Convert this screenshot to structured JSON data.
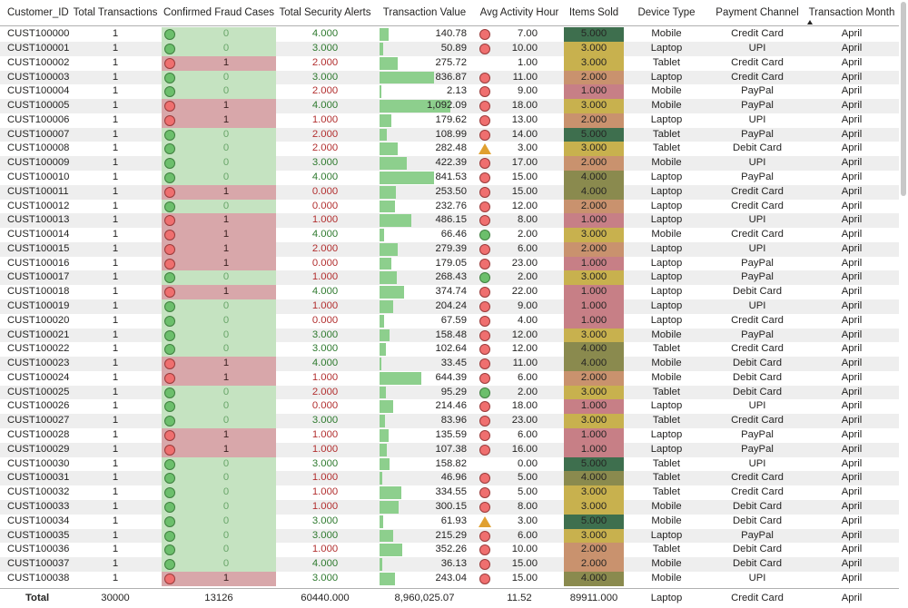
{
  "columns": [
    {
      "key": "customer_id",
      "label": "Customer_ID"
    },
    {
      "key": "total_transactions",
      "label": "Total Transactions"
    },
    {
      "key": "confirmed_fraud_cases",
      "label": "Confirmed Fraud Cases"
    },
    {
      "key": "total_security_alerts",
      "label": "Total Security Alerts"
    },
    {
      "key": "transaction_value",
      "label": "Transaction Value"
    },
    {
      "key": "avg_activity_hour",
      "label": "Avg Activity Hour"
    },
    {
      "key": "items_sold",
      "label": "Items Sold"
    },
    {
      "key": "device_type",
      "label": "Device Type"
    },
    {
      "key": "payment_channel",
      "label": "Payment Channel"
    },
    {
      "key": "transaction_month",
      "label": "Transaction Month"
    }
  ],
  "colors": {
    "fraud_zero_bg": "#c5e3c1",
    "fraud_one_bg": "#d8a7aa",
    "alert_green_text": "#2f7a2f",
    "alert_red_text": "#b22f2f",
    "fraud_zero_text": "#6aa66a",
    "bar_green": "#8dcf8d",
    "items_5": "#3e6f4e",
    "items_4": "#8a8a4e",
    "items_3": "#c8b14e",
    "items_2": "#c9926e",
    "items_1": "#c77f86"
  },
  "rows": [
    {
      "customer_id": "CUST100000",
      "total_transactions": "1",
      "confirmed_fraud_cases": "0",
      "total_security_alerts": "4.000",
      "transaction_value": "140.78",
      "tv_num": 140.78,
      "activity_icon": "red-circle",
      "avg_activity_hour": "7.00",
      "items_sold": "5.000",
      "device_type": "Mobile",
      "payment_channel": "Credit Card",
      "transaction_month": "April"
    },
    {
      "customer_id": "CUST100001",
      "total_transactions": "1",
      "confirmed_fraud_cases": "0",
      "total_security_alerts": "3.000",
      "transaction_value": "50.89",
      "tv_num": 50.89,
      "activity_icon": "red-circle",
      "avg_activity_hour": "10.00",
      "items_sold": "3.000",
      "device_type": "Laptop",
      "payment_channel": "UPI",
      "transaction_month": "April"
    },
    {
      "customer_id": "CUST100002",
      "total_transactions": "1",
      "confirmed_fraud_cases": "1",
      "total_security_alerts": "2.000",
      "transaction_value": "275.72",
      "tv_num": 275.72,
      "activity_icon": "",
      "avg_activity_hour": "1.00",
      "items_sold": "3.000",
      "device_type": "Tablet",
      "payment_channel": "Credit Card",
      "transaction_month": "April"
    },
    {
      "customer_id": "CUST100003",
      "total_transactions": "1",
      "confirmed_fraud_cases": "0",
      "total_security_alerts": "3.000",
      "transaction_value": "836.87",
      "tv_num": 836.87,
      "activity_icon": "red-circle",
      "avg_activity_hour": "11.00",
      "items_sold": "2.000",
      "device_type": "Laptop",
      "payment_channel": "Credit Card",
      "transaction_month": "April"
    },
    {
      "customer_id": "CUST100004",
      "total_transactions": "1",
      "confirmed_fraud_cases": "0",
      "total_security_alerts": "2.000",
      "transaction_value": "2.13",
      "tv_num": 2.13,
      "activity_icon": "red-circle",
      "avg_activity_hour": "9.00",
      "items_sold": "1.000",
      "device_type": "Mobile",
      "payment_channel": "PayPal",
      "transaction_month": "April"
    },
    {
      "customer_id": "CUST100005",
      "total_transactions": "1",
      "confirmed_fraud_cases": "1",
      "total_security_alerts": "4.000",
      "transaction_value": "1,092.09",
      "tv_num": 1092.09,
      "activity_icon": "red-circle",
      "avg_activity_hour": "18.00",
      "items_sold": "3.000",
      "device_type": "Mobile",
      "payment_channel": "PayPal",
      "transaction_month": "April"
    },
    {
      "customer_id": "CUST100006",
      "total_transactions": "1",
      "confirmed_fraud_cases": "1",
      "total_security_alerts": "1.000",
      "transaction_value": "179.62",
      "tv_num": 179.62,
      "activity_icon": "red-circle",
      "avg_activity_hour": "13.00",
      "items_sold": "2.000",
      "device_type": "Laptop",
      "payment_channel": "UPI",
      "transaction_month": "April"
    },
    {
      "customer_id": "CUST100007",
      "total_transactions": "1",
      "confirmed_fraud_cases": "0",
      "total_security_alerts": "2.000",
      "transaction_value": "108.99",
      "tv_num": 108.99,
      "activity_icon": "red-circle",
      "avg_activity_hour": "14.00",
      "items_sold": "5.000",
      "device_type": "Tablet",
      "payment_channel": "PayPal",
      "transaction_month": "April"
    },
    {
      "customer_id": "CUST100008",
      "total_transactions": "1",
      "confirmed_fraud_cases": "0",
      "total_security_alerts": "2.000",
      "transaction_value": "282.48",
      "tv_num": 282.48,
      "activity_icon": "orange-triangle",
      "avg_activity_hour": "3.00",
      "items_sold": "3.000",
      "device_type": "Tablet",
      "payment_channel": "Debit Card",
      "transaction_month": "April"
    },
    {
      "customer_id": "CUST100009",
      "total_transactions": "1",
      "confirmed_fraud_cases": "0",
      "total_security_alerts": "3.000",
      "transaction_value": "422.39",
      "tv_num": 422.39,
      "activity_icon": "red-circle",
      "avg_activity_hour": "17.00",
      "items_sold": "2.000",
      "device_type": "Mobile",
      "payment_channel": "UPI",
      "transaction_month": "April"
    },
    {
      "customer_id": "CUST100010",
      "total_transactions": "1",
      "confirmed_fraud_cases": "0",
      "total_security_alerts": "4.000",
      "transaction_value": "841.53",
      "tv_num": 841.53,
      "activity_icon": "red-circle",
      "avg_activity_hour": "15.00",
      "items_sold": "4.000",
      "device_type": "Laptop",
      "payment_channel": "PayPal",
      "transaction_month": "April"
    },
    {
      "customer_id": "CUST100011",
      "total_transactions": "1",
      "confirmed_fraud_cases": "1",
      "total_security_alerts": "0.000",
      "transaction_value": "253.50",
      "tv_num": 253.5,
      "activity_icon": "red-circle",
      "avg_activity_hour": "15.00",
      "items_sold": "4.000",
      "device_type": "Laptop",
      "payment_channel": "Credit Card",
      "transaction_month": "April"
    },
    {
      "customer_id": "CUST100012",
      "total_transactions": "1",
      "confirmed_fraud_cases": "0",
      "total_security_alerts": "0.000",
      "transaction_value": "232.76",
      "tv_num": 232.76,
      "activity_icon": "red-circle",
      "avg_activity_hour": "12.00",
      "items_sold": "2.000",
      "device_type": "Laptop",
      "payment_channel": "Credit Card",
      "transaction_month": "April"
    },
    {
      "customer_id": "CUST100013",
      "total_transactions": "1",
      "confirmed_fraud_cases": "1",
      "total_security_alerts": "1.000",
      "transaction_value": "486.15",
      "tv_num": 486.15,
      "activity_icon": "red-circle",
      "avg_activity_hour": "8.00",
      "items_sold": "1.000",
      "device_type": "Laptop",
      "payment_channel": "UPI",
      "transaction_month": "April"
    },
    {
      "customer_id": "CUST100014",
      "total_transactions": "1",
      "confirmed_fraud_cases": "1",
      "total_security_alerts": "4.000",
      "transaction_value": "66.46",
      "tv_num": 66.46,
      "activity_icon": "green-circle",
      "avg_activity_hour": "2.00",
      "items_sold": "3.000",
      "device_type": "Mobile",
      "payment_channel": "Credit Card",
      "transaction_month": "April"
    },
    {
      "customer_id": "CUST100015",
      "total_transactions": "1",
      "confirmed_fraud_cases": "1",
      "total_security_alerts": "2.000",
      "transaction_value": "279.39",
      "tv_num": 279.39,
      "activity_icon": "red-circle",
      "avg_activity_hour": "6.00",
      "items_sold": "2.000",
      "device_type": "Laptop",
      "payment_channel": "UPI",
      "transaction_month": "April"
    },
    {
      "customer_id": "CUST100016",
      "total_transactions": "1",
      "confirmed_fraud_cases": "1",
      "total_security_alerts": "0.000",
      "transaction_value": "179.05",
      "tv_num": 179.05,
      "activity_icon": "red-circle",
      "avg_activity_hour": "23.00",
      "items_sold": "1.000",
      "device_type": "Laptop",
      "payment_channel": "PayPal",
      "transaction_month": "April"
    },
    {
      "customer_id": "CUST100017",
      "total_transactions": "1",
      "confirmed_fraud_cases": "0",
      "total_security_alerts": "1.000",
      "transaction_value": "268.43",
      "tv_num": 268.43,
      "activity_icon": "green-circle",
      "avg_activity_hour": "2.00",
      "items_sold": "3.000",
      "device_type": "Laptop",
      "payment_channel": "PayPal",
      "transaction_month": "April"
    },
    {
      "customer_id": "CUST100018",
      "total_transactions": "1",
      "confirmed_fraud_cases": "1",
      "total_security_alerts": "4.000",
      "transaction_value": "374.74",
      "tv_num": 374.74,
      "activity_icon": "red-circle",
      "avg_activity_hour": "22.00",
      "items_sold": "1.000",
      "device_type": "Laptop",
      "payment_channel": "Debit Card",
      "transaction_month": "April"
    },
    {
      "customer_id": "CUST100019",
      "total_transactions": "1",
      "confirmed_fraud_cases": "0",
      "total_security_alerts": "1.000",
      "transaction_value": "204.24",
      "tv_num": 204.24,
      "activity_icon": "red-circle",
      "avg_activity_hour": "9.00",
      "items_sold": "1.000",
      "device_type": "Laptop",
      "payment_channel": "UPI",
      "transaction_month": "April"
    },
    {
      "customer_id": "CUST100020",
      "total_transactions": "1",
      "confirmed_fraud_cases": "0",
      "total_security_alerts": "0.000",
      "transaction_value": "67.59",
      "tv_num": 67.59,
      "activity_icon": "red-circle",
      "avg_activity_hour": "4.00",
      "items_sold": "1.000",
      "device_type": "Laptop",
      "payment_channel": "Credit Card",
      "transaction_month": "April"
    },
    {
      "customer_id": "CUST100021",
      "total_transactions": "1",
      "confirmed_fraud_cases": "0",
      "total_security_alerts": "3.000",
      "transaction_value": "158.48",
      "tv_num": 158.48,
      "activity_icon": "red-circle",
      "avg_activity_hour": "12.00",
      "items_sold": "3.000",
      "device_type": "Mobile",
      "payment_channel": "PayPal",
      "transaction_month": "April"
    },
    {
      "customer_id": "CUST100022",
      "total_transactions": "1",
      "confirmed_fraud_cases": "0",
      "total_security_alerts": "3.000",
      "transaction_value": "102.64",
      "tv_num": 102.64,
      "activity_icon": "red-circle",
      "avg_activity_hour": "12.00",
      "items_sold": "4.000",
      "device_type": "Tablet",
      "payment_channel": "Credit Card",
      "transaction_month": "April"
    },
    {
      "customer_id": "CUST100023",
      "total_transactions": "1",
      "confirmed_fraud_cases": "1",
      "total_security_alerts": "4.000",
      "transaction_value": "33.45",
      "tv_num": 33.45,
      "activity_icon": "red-circle",
      "avg_activity_hour": "11.00",
      "items_sold": "4.000",
      "device_type": "Mobile",
      "payment_channel": "Debit Card",
      "transaction_month": "April"
    },
    {
      "customer_id": "CUST100024",
      "total_transactions": "1",
      "confirmed_fraud_cases": "1",
      "total_security_alerts": "1.000",
      "transaction_value": "644.39",
      "tv_num": 644.39,
      "activity_icon": "red-circle",
      "avg_activity_hour": "6.00",
      "items_sold": "2.000",
      "device_type": "Mobile",
      "payment_channel": "Debit Card",
      "transaction_month": "April"
    },
    {
      "customer_id": "CUST100025",
      "total_transactions": "1",
      "confirmed_fraud_cases": "0",
      "total_security_alerts": "2.000",
      "transaction_value": "95.29",
      "tv_num": 95.29,
      "activity_icon": "green-circle",
      "avg_activity_hour": "2.00",
      "items_sold": "3.000",
      "device_type": "Tablet",
      "payment_channel": "Debit Card",
      "transaction_month": "April"
    },
    {
      "customer_id": "CUST100026",
      "total_transactions": "1",
      "confirmed_fraud_cases": "0",
      "total_security_alerts": "0.000",
      "transaction_value": "214.46",
      "tv_num": 214.46,
      "activity_icon": "red-circle",
      "avg_activity_hour": "18.00",
      "items_sold": "1.000",
      "device_type": "Laptop",
      "payment_channel": "UPI",
      "transaction_month": "April"
    },
    {
      "customer_id": "CUST100027",
      "total_transactions": "1",
      "confirmed_fraud_cases": "0",
      "total_security_alerts": "3.000",
      "transaction_value": "83.96",
      "tv_num": 83.96,
      "activity_icon": "red-circle",
      "avg_activity_hour": "23.00",
      "items_sold": "3.000",
      "device_type": "Tablet",
      "payment_channel": "Credit Card",
      "transaction_month": "April"
    },
    {
      "customer_id": "CUST100028",
      "total_transactions": "1",
      "confirmed_fraud_cases": "1",
      "total_security_alerts": "1.000",
      "transaction_value": "135.59",
      "tv_num": 135.59,
      "activity_icon": "red-circle",
      "avg_activity_hour": "6.00",
      "items_sold": "1.000",
      "device_type": "Laptop",
      "payment_channel": "PayPal",
      "transaction_month": "April"
    },
    {
      "customer_id": "CUST100029",
      "total_transactions": "1",
      "confirmed_fraud_cases": "1",
      "total_security_alerts": "1.000",
      "transaction_value": "107.38",
      "tv_num": 107.38,
      "activity_icon": "red-circle",
      "avg_activity_hour": "16.00",
      "items_sold": "1.000",
      "device_type": "Laptop",
      "payment_channel": "PayPal",
      "transaction_month": "April"
    },
    {
      "customer_id": "CUST100030",
      "total_transactions": "1",
      "confirmed_fraud_cases": "0",
      "total_security_alerts": "3.000",
      "transaction_value": "158.82",
      "tv_num": 158.82,
      "activity_icon": "",
      "avg_activity_hour": "0.00",
      "items_sold": "5.000",
      "device_type": "Tablet",
      "payment_channel": "UPI",
      "transaction_month": "April"
    },
    {
      "customer_id": "CUST100031",
      "total_transactions": "1",
      "confirmed_fraud_cases": "0",
      "total_security_alerts": "1.000",
      "transaction_value": "46.96",
      "tv_num": 46.96,
      "activity_icon": "red-circle",
      "avg_activity_hour": "5.00",
      "items_sold": "4.000",
      "device_type": "Tablet",
      "payment_channel": "Credit Card",
      "transaction_month": "April"
    },
    {
      "customer_id": "CUST100032",
      "total_transactions": "1",
      "confirmed_fraud_cases": "0",
      "total_security_alerts": "1.000",
      "transaction_value": "334.55",
      "tv_num": 334.55,
      "activity_icon": "red-circle",
      "avg_activity_hour": "5.00",
      "items_sold": "3.000",
      "device_type": "Tablet",
      "payment_channel": "Credit Card",
      "transaction_month": "April"
    },
    {
      "customer_id": "CUST100033",
      "total_transactions": "1",
      "confirmed_fraud_cases": "0",
      "total_security_alerts": "1.000",
      "transaction_value": "300.15",
      "tv_num": 300.15,
      "activity_icon": "red-circle",
      "avg_activity_hour": "8.00",
      "items_sold": "3.000",
      "device_type": "Mobile",
      "payment_channel": "Debit Card",
      "transaction_month": "April"
    },
    {
      "customer_id": "CUST100034",
      "total_transactions": "1",
      "confirmed_fraud_cases": "0",
      "total_security_alerts": "3.000",
      "transaction_value": "61.93",
      "tv_num": 61.93,
      "activity_icon": "orange-triangle",
      "avg_activity_hour": "3.00",
      "items_sold": "5.000",
      "device_type": "Mobile",
      "payment_channel": "Debit Card",
      "transaction_month": "April"
    },
    {
      "customer_id": "CUST100035",
      "total_transactions": "1",
      "confirmed_fraud_cases": "0",
      "total_security_alerts": "3.000",
      "transaction_value": "215.29",
      "tv_num": 215.29,
      "activity_icon": "red-circle",
      "avg_activity_hour": "6.00",
      "items_sold": "3.000",
      "device_type": "Laptop",
      "payment_channel": "PayPal",
      "transaction_month": "April"
    },
    {
      "customer_id": "CUST100036",
      "total_transactions": "1",
      "confirmed_fraud_cases": "0",
      "total_security_alerts": "1.000",
      "transaction_value": "352.26",
      "tv_num": 352.26,
      "activity_icon": "red-circle",
      "avg_activity_hour": "10.00",
      "items_sold": "2.000",
      "device_type": "Tablet",
      "payment_channel": "Debit Card",
      "transaction_month": "April"
    },
    {
      "customer_id": "CUST100037",
      "total_transactions": "1",
      "confirmed_fraud_cases": "0",
      "total_security_alerts": "4.000",
      "transaction_value": "36.13",
      "tv_num": 36.13,
      "activity_icon": "red-circle",
      "avg_activity_hour": "15.00",
      "items_sold": "2.000",
      "device_type": "Mobile",
      "payment_channel": "Debit Card",
      "transaction_month": "April"
    },
    {
      "customer_id": "CUST100038",
      "total_transactions": "1",
      "confirmed_fraud_cases": "1",
      "total_security_alerts": "3.000",
      "transaction_value": "243.04",
      "tv_num": 243.04,
      "activity_icon": "red-circle",
      "avg_activity_hour": "15.00",
      "items_sold": "4.000",
      "device_type": "Mobile",
      "payment_channel": "UPI",
      "transaction_month": "April"
    }
  ],
  "totals": {
    "label": "Total",
    "total_transactions": "30000",
    "confirmed_fraud_cases": "13126",
    "total_security_alerts": "60440.000",
    "transaction_value": "8,960,025.07",
    "avg_activity_hour": "11.52",
    "items_sold": "89911.000",
    "device_type": "Laptop",
    "payment_channel": "Credit Card",
    "transaction_month": "April"
  },
  "sort": {
    "column": "transaction_month",
    "direction": "ascending",
    "icon": "sort-up-icon"
  },
  "scrollbar": {
    "icon": "vertical-scrollbar"
  }
}
